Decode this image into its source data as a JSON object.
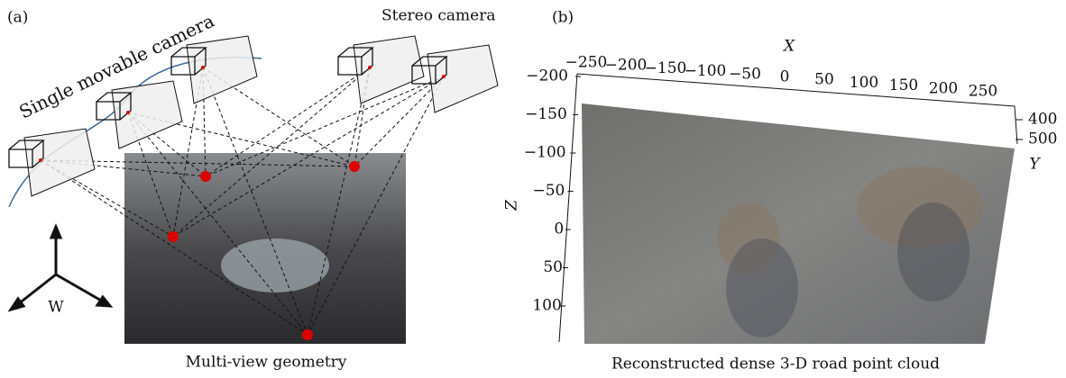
{
  "panel_a": {
    "label": "(a)",
    "single_camera": "Single movable camera",
    "stereo_camera": "Stereo camera",
    "axis_label": "W",
    "caption": "Multi-view geometry"
  },
  "panel_b": {
    "label": "(b)",
    "caption": "Reconstructed dense 3-D road point cloud",
    "x_axis": {
      "title": "X",
      "ticks": [
        "−250",
        "−200",
        "−150",
        "−100",
        "−50",
        "0",
        "50",
        "100",
        "150",
        "200",
        "250"
      ]
    },
    "z_axis": {
      "title": "Z",
      "ticks": [
        "−200",
        "−150",
        "−100",
        "−50",
        "0",
        "50",
        "100"
      ]
    },
    "y_axis": {
      "title": "Y",
      "ticks": [
        "400",
        "500"
      ]
    }
  }
}
